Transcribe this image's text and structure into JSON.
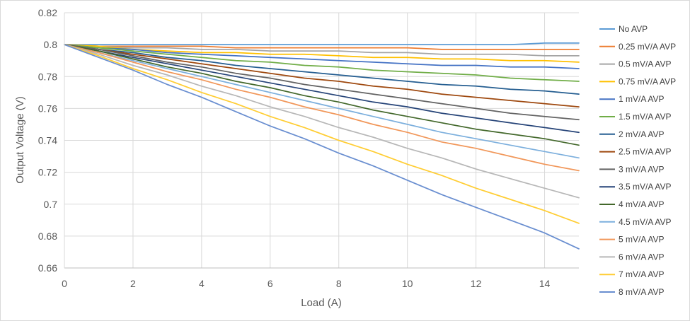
{
  "chart_data": {
    "type": "line",
    "title": "",
    "xlabel": "Load (A)",
    "ylabel": "Output Voltage (V)",
    "xlim": [
      0,
      15
    ],
    "ylim": [
      0.66,
      0.82
    ],
    "xticks": [
      0,
      2,
      4,
      6,
      8,
      10,
      12,
      14
    ],
    "yticks": [
      0.66,
      0.68,
      0.7,
      0.72,
      0.74,
      0.76,
      0.78,
      0.8,
      0.82
    ],
    "xtick_labels": [
      "0",
      "2",
      "4",
      "6",
      "8",
      "10",
      "12",
      "14"
    ],
    "ytick_labels": [
      "0.66",
      "0.68",
      "0.7",
      "0.72",
      "0.74",
      "0.76",
      "0.78",
      "0.8",
      "0.82"
    ],
    "grid": true,
    "legend_position": "right",
    "x": [
      0,
      1,
      2,
      3,
      4,
      5,
      6,
      7,
      8,
      9,
      10,
      11,
      12,
      13,
      14,
      15
    ],
    "series": [
      {
        "name": "No AVP",
        "color": "#5b9bd5",
        "values": [
          0.8,
          0.8,
          0.8,
          0.8,
          0.8,
          0.8,
          0.8,
          0.8,
          0.8,
          0.8,
          0.8,
          0.8,
          0.8,
          0.8,
          0.801,
          0.801
        ]
      },
      {
        "name": "0.25 mV/A AVP",
        "color": "#ed7d31",
        "values": [
          0.8,
          0.799,
          0.799,
          0.799,
          0.799,
          0.798,
          0.798,
          0.798,
          0.798,
          0.798,
          0.798,
          0.797,
          0.797,
          0.797,
          0.797,
          0.797
        ]
      },
      {
        "name": "0.5 mV/A AVP",
        "color": "#a5a5a5",
        "values": [
          0.8,
          0.799,
          0.798,
          0.798,
          0.797,
          0.797,
          0.796,
          0.796,
          0.796,
          0.795,
          0.795,
          0.794,
          0.794,
          0.794,
          0.793,
          0.793
        ]
      },
      {
        "name": "0.75 mV/A AVP",
        "color": "#ffc000",
        "values": [
          0.8,
          0.799,
          0.797,
          0.796,
          0.795,
          0.795,
          0.794,
          0.794,
          0.793,
          0.792,
          0.792,
          0.791,
          0.791,
          0.79,
          0.79,
          0.789
        ]
      },
      {
        "name": "1 mV/A AVP",
        "color": "#4472c4",
        "values": [
          0.8,
          0.798,
          0.797,
          0.795,
          0.794,
          0.793,
          0.792,
          0.791,
          0.79,
          0.789,
          0.788,
          0.787,
          0.787,
          0.786,
          0.786,
          0.785
        ]
      },
      {
        "name": "1.5 mV/A AVP",
        "color": "#70ad47",
        "values": [
          0.8,
          0.798,
          0.796,
          0.794,
          0.792,
          0.79,
          0.789,
          0.787,
          0.786,
          0.784,
          0.783,
          0.782,
          0.781,
          0.779,
          0.778,
          0.777
        ]
      },
      {
        "name": "2 mV/A AVP",
        "color": "#255e91",
        "values": [
          0.8,
          0.797,
          0.795,
          0.792,
          0.79,
          0.787,
          0.785,
          0.783,
          0.781,
          0.779,
          0.777,
          0.775,
          0.774,
          0.772,
          0.771,
          0.769
        ]
      },
      {
        "name": "2.5 mV/A AVP",
        "color": "#9e480e",
        "values": [
          0.8,
          0.797,
          0.794,
          0.791,
          0.788,
          0.785,
          0.782,
          0.779,
          0.777,
          0.774,
          0.772,
          0.769,
          0.767,
          0.765,
          0.763,
          0.761
        ]
      },
      {
        "name": "3 mV/A AVP",
        "color": "#636363",
        "values": [
          0.8,
          0.797,
          0.793,
          0.789,
          0.786,
          0.782,
          0.779,
          0.775,
          0.772,
          0.769,
          0.766,
          0.763,
          0.76,
          0.757,
          0.755,
          0.753
        ]
      },
      {
        "name": "3.5 mV/A AVP",
        "color": "#264478",
        "values": [
          0.8,
          0.796,
          0.792,
          0.788,
          0.784,
          0.78,
          0.776,
          0.772,
          0.768,
          0.764,
          0.761,
          0.757,
          0.754,
          0.751,
          0.748,
          0.745
        ]
      },
      {
        "name": "4 mV/A AVP",
        "color": "#43682b",
        "values": [
          0.8,
          0.796,
          0.791,
          0.786,
          0.782,
          0.777,
          0.773,
          0.768,
          0.764,
          0.759,
          0.755,
          0.751,
          0.747,
          0.744,
          0.741,
          0.737
        ]
      },
      {
        "name": "4.5 mV/A AVP",
        "color": "#7cafdd",
        "values": [
          0.8,
          0.795,
          0.79,
          0.785,
          0.78,
          0.775,
          0.77,
          0.765,
          0.76,
          0.755,
          0.75,
          0.745,
          0.741,
          0.737,
          0.733,
          0.729
        ]
      },
      {
        "name": "5 mV/A AVP",
        "color": "#f1975a",
        "values": [
          0.8,
          0.795,
          0.789,
          0.783,
          0.778,
          0.772,
          0.767,
          0.761,
          0.756,
          0.75,
          0.745,
          0.739,
          0.735,
          0.73,
          0.725,
          0.721
        ]
      },
      {
        "name": "6 mV/A AVP",
        "color": "#b7b7b7",
        "values": [
          0.8,
          0.794,
          0.787,
          0.781,
          0.774,
          0.768,
          0.761,
          0.755,
          0.748,
          0.742,
          0.735,
          0.729,
          0.722,
          0.716,
          0.71,
          0.704
        ]
      },
      {
        "name": "7 mV/A AVP",
        "color": "#ffcd33",
        "values": [
          0.8,
          0.793,
          0.785,
          0.778,
          0.77,
          0.763,
          0.755,
          0.748,
          0.74,
          0.733,
          0.725,
          0.718,
          0.71,
          0.703,
          0.696,
          0.688
        ]
      },
      {
        "name": "8 mV/A AVP",
        "color": "#698ed0",
        "values": [
          0.8,
          0.792,
          0.784,
          0.775,
          0.767,
          0.758,
          0.749,
          0.741,
          0.732,
          0.724,
          0.715,
          0.706,
          0.698,
          0.69,
          0.682,
          0.672
        ]
      }
    ]
  }
}
